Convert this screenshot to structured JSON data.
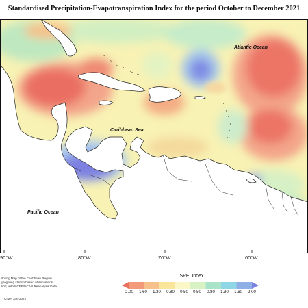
{
  "title": "Standardised Precipitation-Evapotranspiration Index for the period October to December 2021",
  "map_labels": {
    "atlantic": "Atlantic Ocean",
    "caribbean": "Caribbean Sea",
    "pacific": "Pacific Ocean"
  },
  "longitudes": [
    "90°W",
    "80°W",
    "70°W",
    "60°W"
  ],
  "legend": {
    "title": "SPEI Index",
    "colors": [
      "#e8705f",
      "#f29a7a",
      "#f6c18a",
      "#f9e69a",
      "#fbf7c6",
      "#d9f2c4",
      "#a9e4c9",
      "#8fd6e6",
      "#8fb0e6",
      "#7b82e0"
    ],
    "ticks": [
      "-2.00",
      "-1.60",
      "-1.30",
      "-0.80",
      "-0.50",
      "0.50",
      "0.80",
      "1.30",
      "1.60",
      "2.00"
    ]
  },
  "credits": {
    "line1": "itoring Map of the Caribbean Region.",
    "line2": "gregating station based observations,",
    "line3": "IOF, with NCEP/NCAR Reanalysis Data",
    "copyright": "CIMH Jan-2022"
  }
}
